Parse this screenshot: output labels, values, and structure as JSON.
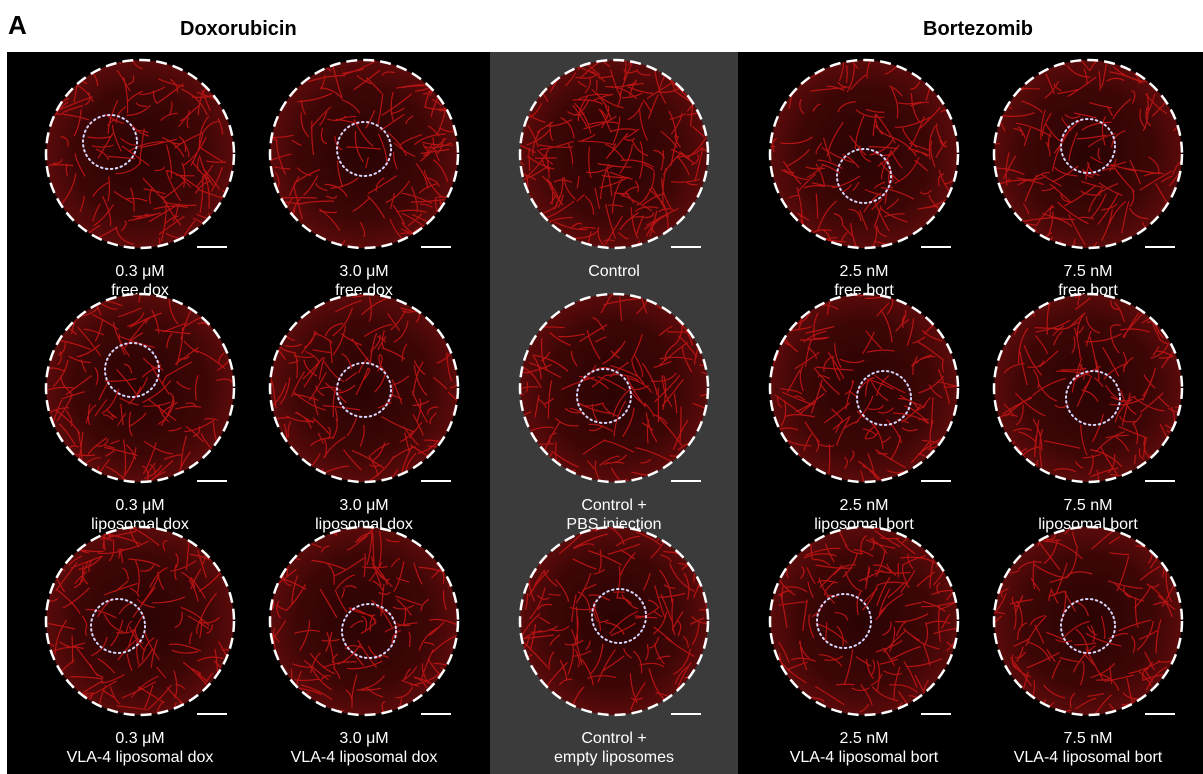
{
  "panel_label": "A",
  "group_titles": {
    "left": "Doxorubicin",
    "right": "Bortezomib"
  },
  "colors": {
    "background": "#000000",
    "control_band": "#3b3b3b",
    "stain": "#c21515",
    "outline": "#ffffff"
  },
  "panels": [
    {
      "line1": "0.3 μM",
      "line2": "free dox"
    },
    {
      "line1": "3.0 μM",
      "line2": "free dox"
    },
    {
      "line1": "",
      "line2": "Control"
    },
    {
      "line1": "2.5 nM",
      "line2": "free bort"
    },
    {
      "line1": "7.5 nM",
      "line2": "free bort"
    },
    {
      "line1": "0.3 μM",
      "line2": "liposomal dox"
    },
    {
      "line1": "3.0 μM",
      "line2": "liposomal dox"
    },
    {
      "line1": "Control +",
      "line2": "PBS injection"
    },
    {
      "line1": "2.5 nM",
      "line2": "liposomal bort"
    },
    {
      "line1": "7.5 nM",
      "line2": "liposomal bort"
    },
    {
      "line1": "0.3 μM",
      "line2": "VLA-4 liposomal dox"
    },
    {
      "line1": "3.0 μM",
      "line2": "VLA-4 liposomal dox"
    },
    {
      "line1": "Control +",
      "line2": "empty liposomes"
    },
    {
      "line1": "2.5 nM",
      "line2": "VLA-4 liposomal bort"
    },
    {
      "line1": "7.5 nM",
      "line2": "VLA-4 liposomal bort"
    }
  ]
}
